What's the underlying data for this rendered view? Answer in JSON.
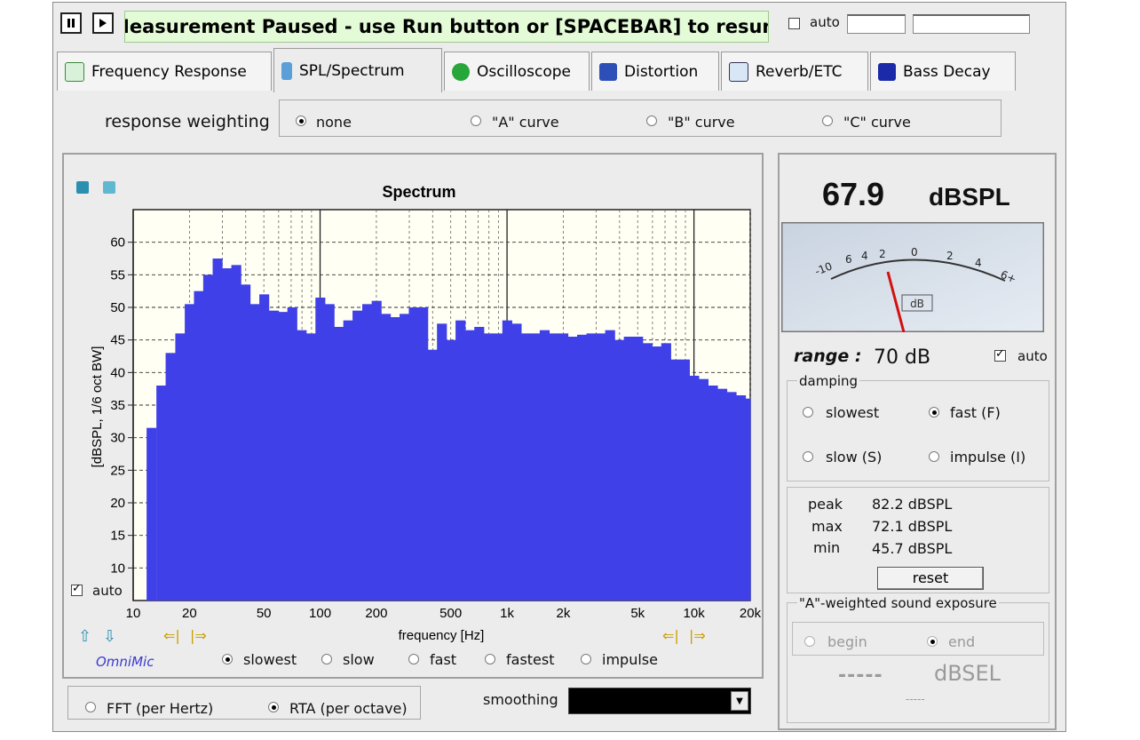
{
  "status_bar": {
    "message": "Measurement Paused - use Run button or [SPACEBAR] to resume",
    "auto_label": "auto",
    "auto_checked": false
  },
  "tabs": [
    {
      "label": "Frequency Response",
      "icon": "frequency-response-icon",
      "active": false
    },
    {
      "label": "SPL/Spectrum",
      "icon": "spl-spectrum-icon",
      "active": true
    },
    {
      "label": "Oscilloscope",
      "icon": "oscilloscope-icon",
      "active": false
    },
    {
      "label": "Distortion",
      "icon": "distortion-icon",
      "active": false
    },
    {
      "label": "Reverb/ETC",
      "icon": "reverb-etc-icon",
      "active": false
    },
    {
      "label": "Bass Decay",
      "icon": "bass-decay-icon",
      "active": false
    }
  ],
  "weighting": {
    "label": "response weighting",
    "options": [
      "none",
      "\"A\" curve",
      "\"B\" curve",
      "\"C\" curve"
    ],
    "selected": "none"
  },
  "chart_data": {
    "type": "bar",
    "title": "Spectrum",
    "xlabel": "frequency [Hz]",
    "ylabel": "[dBSPL, 1/6 oct BW]",
    "xscale": "log",
    "xlim": [
      10,
      20000
    ],
    "ylim": [
      5,
      65
    ],
    "grid": true,
    "x_tick_labels": [
      "10",
      "20",
      "50",
      "100",
      "200",
      "500",
      "1k",
      "2k",
      "5k",
      "10k",
      "20k"
    ],
    "y_tick_labels": [
      "10",
      "15",
      "20",
      "25",
      "30",
      "35",
      "40",
      "45",
      "50",
      "55",
      "60"
    ],
    "bar_color": "#4040e8",
    "bars": [
      {
        "f": 12.5,
        "v": 31.5
      },
      {
        "f": 14.1,
        "v": 38.0
      },
      {
        "f": 15.8,
        "v": 43.0
      },
      {
        "f": 17.8,
        "v": 46.0
      },
      {
        "f": 20.0,
        "v": 50.5
      },
      {
        "f": 22.4,
        "v": 52.5
      },
      {
        "f": 25.1,
        "v": 55.0
      },
      {
        "f": 28.2,
        "v": 57.5
      },
      {
        "f": 31.6,
        "v": 56.0
      },
      {
        "f": 35.5,
        "v": 56.5
      },
      {
        "f": 39.8,
        "v": 53.5
      },
      {
        "f": 44.7,
        "v": 50.5
      },
      {
        "f": 50.1,
        "v": 52.0
      },
      {
        "f": 56.2,
        "v": 49.5
      },
      {
        "f": 63.1,
        "v": 49.3
      },
      {
        "f": 70.8,
        "v": 50.0
      },
      {
        "f": 79.4,
        "v": 46.5
      },
      {
        "f": 89.1,
        "v": 46.0
      },
      {
        "f": 100,
        "v": 51.5
      },
      {
        "f": 112,
        "v": 50.5
      },
      {
        "f": 126,
        "v": 47.0
      },
      {
        "f": 141,
        "v": 48.0
      },
      {
        "f": 158,
        "v": 49.5
      },
      {
        "f": 178,
        "v": 50.5
      },
      {
        "f": 200,
        "v": 51.0
      },
      {
        "f": 224,
        "v": 49.0
      },
      {
        "f": 251,
        "v": 48.5
      },
      {
        "f": 282,
        "v": 49.0
      },
      {
        "f": 316,
        "v": 50.0
      },
      {
        "f": 355,
        "v": 50.0
      },
      {
        "f": 398,
        "v": 43.5
      },
      {
        "f": 447,
        "v": 47.5
      },
      {
        "f": 501,
        "v": 45.0
      },
      {
        "f": 562,
        "v": 48.0
      },
      {
        "f": 631,
        "v": 46.5
      },
      {
        "f": 708,
        "v": 47.0
      },
      {
        "f": 794,
        "v": 46.0
      },
      {
        "f": 891,
        "v": 46.0
      },
      {
        "f": 1000,
        "v": 48.0
      },
      {
        "f": 1122,
        "v": 47.5
      },
      {
        "f": 1259,
        "v": 46.0
      },
      {
        "f": 1413,
        "v": 46.0
      },
      {
        "f": 1585,
        "v": 46.5
      },
      {
        "f": 1778,
        "v": 46.0
      },
      {
        "f": 1995,
        "v": 46.0
      },
      {
        "f": 2239,
        "v": 45.5
      },
      {
        "f": 2512,
        "v": 45.8
      },
      {
        "f": 2818,
        "v": 46.0
      },
      {
        "f": 3162,
        "v": 46.0
      },
      {
        "f": 3548,
        "v": 46.5
      },
      {
        "f": 3981,
        "v": 45.0
      },
      {
        "f": 4467,
        "v": 45.5
      },
      {
        "f": 5012,
        "v": 45.5
      },
      {
        "f": 5623,
        "v": 44.5
      },
      {
        "f": 6310,
        "v": 44.0
      },
      {
        "f": 7079,
        "v": 44.5
      },
      {
        "f": 7943,
        "v": 42.0
      },
      {
        "f": 8913,
        "v": 42.0
      },
      {
        "f": 10000,
        "v": 39.5
      },
      {
        "f": 11220,
        "v": 39.0
      },
      {
        "f": 12589,
        "v": 38.0
      },
      {
        "f": 14125,
        "v": 37.5
      },
      {
        "f": 15849,
        "v": 37.0
      },
      {
        "f": 17783,
        "v": 36.5
      },
      {
        "f": 19953,
        "v": 36.0
      }
    ]
  },
  "plot_controls": {
    "auto_label": "auto",
    "auto_checked": true,
    "brand": "OmniMic",
    "averaging_options": [
      "slowest",
      "slow",
      "fast",
      "fastest",
      "impulse"
    ],
    "averaging_selected": "slowest"
  },
  "mode": {
    "options": [
      "FFT (per Hertz)",
      "RTA (per octave)"
    ],
    "selected": "RTA (per octave)",
    "smoothing_label": "smoothing",
    "smoothing_value": ""
  },
  "meter": {
    "value": "67.9",
    "unit": "dBSPL",
    "scale_labels": [
      "-10",
      "6",
      "4",
      "2",
      "0",
      "2",
      "4",
      "6+"
    ],
    "scale_unit": "dB",
    "range_label": "range :",
    "range_value": "70 dB",
    "auto_label": "auto",
    "auto_checked": true
  },
  "damping": {
    "legend": "damping",
    "options": [
      "slowest",
      "fast (F)",
      "slow (S)",
      "impulse (I)"
    ],
    "selected": "fast (F)"
  },
  "stats": {
    "peak_label": "peak",
    "peak_value": "82.2 dBSPL",
    "max_label": "max",
    "max_value": "72.1 dBSPL",
    "min_label": "min",
    "min_value": "45.7 dBSPL",
    "reset_label": "reset"
  },
  "exposure": {
    "legend": "\"A\"-weighted sound exposure",
    "begin_label": "begin",
    "end_label": "end",
    "value": "-----",
    "unit": "dBSEL",
    "footer": "-----"
  }
}
